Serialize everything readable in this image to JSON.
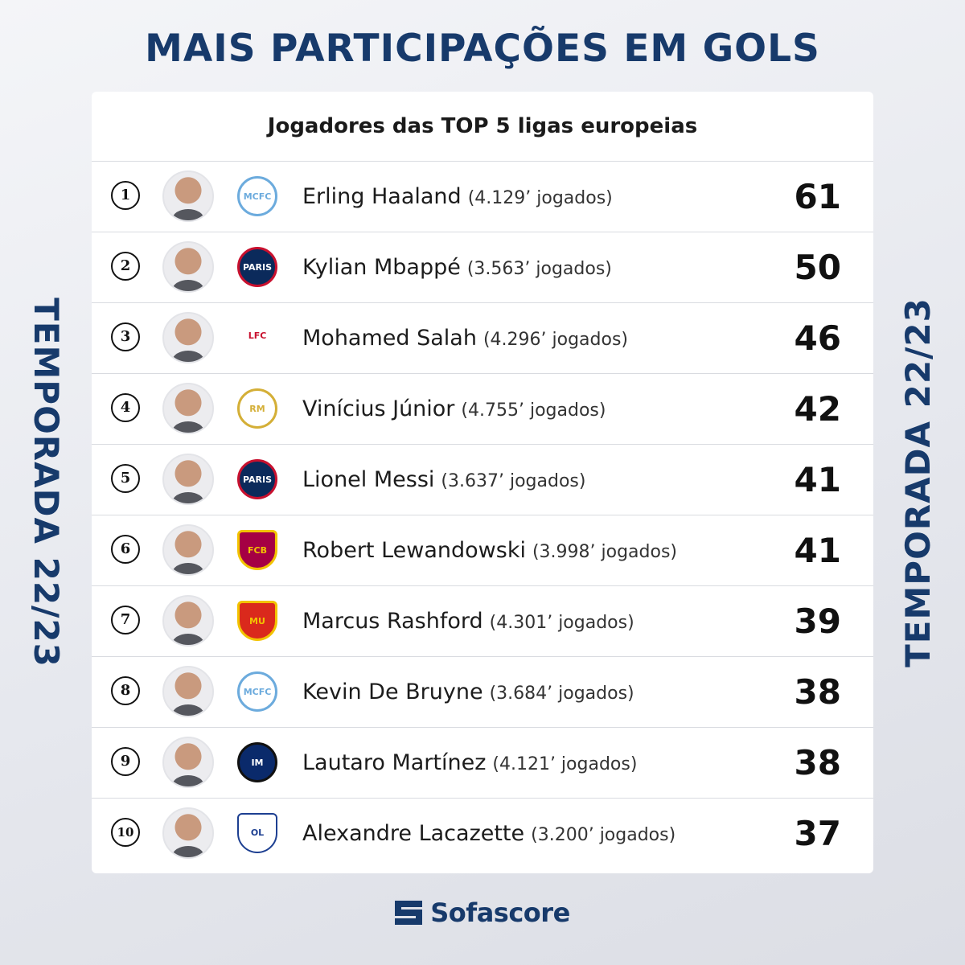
{
  "title": "MAIS PARTICIPAÇÕES EM GOLS",
  "side_label": "TEMPORADA 22/23",
  "card": {
    "header": "Jogadores das TOP 5 ligas europeias",
    "rows": [
      {
        "rank": "1",
        "name": "Erling Haaland",
        "minutes": "(4.129’ jogados)",
        "value": "61",
        "club_icon": "manchester-city-crest",
        "avatar_icon": "player-photo"
      },
      {
        "rank": "2",
        "name": "Kylian Mbappé",
        "minutes": "(3.563’ jogados)",
        "value": "50",
        "club_icon": "psg-crest",
        "avatar_icon": "player-photo"
      },
      {
        "rank": "3",
        "name": "Mohamed Salah",
        "minutes": "(4.296’ jogados)",
        "value": "46",
        "club_icon": "liverpool-crest",
        "avatar_icon": "player-photo"
      },
      {
        "rank": "4",
        "name": "Vinícius Júnior",
        "minutes": "(4.755’ jogados)",
        "value": "42",
        "club_icon": "real-madrid-crest",
        "avatar_icon": "player-photo"
      },
      {
        "rank": "5",
        "name": "Lionel Messi",
        "minutes": "(3.637’ jogados)",
        "value": "41",
        "club_icon": "psg-crest",
        "avatar_icon": "player-photo"
      },
      {
        "rank": "6",
        "name": "Robert Lewandowski",
        "minutes": "(3.998’ jogados)",
        "value": "41",
        "club_icon": "barcelona-crest",
        "avatar_icon": "player-photo"
      },
      {
        "rank": "7",
        "name": "Marcus Rashford",
        "minutes": "(4.301’ jogados)",
        "value": "39",
        "club_icon": "manchester-united-crest",
        "avatar_icon": "player-photo"
      },
      {
        "rank": "8",
        "name": "Kevin De Bruyne",
        "minutes": "(3.684’ jogados)",
        "value": "38",
        "club_icon": "manchester-city-crest",
        "avatar_icon": "player-photo"
      },
      {
        "rank": "9",
        "name": "Lautaro Martínez",
        "minutes": "(4.121’ jogados)",
        "value": "38",
        "club_icon": "inter-crest",
        "avatar_icon": "player-photo"
      },
      {
        "rank": "10",
        "name": "Alexandre Lacazette",
        "minutes": "(3.200’ jogados)",
        "value": "37",
        "club_icon": "lyon-crest",
        "avatar_icon": "player-photo"
      }
    ]
  },
  "brand": {
    "name": "Sofascore",
    "icon": "sofascore-logo-icon"
  },
  "colors": {
    "primary_navy": "#173a6b",
    "man_city": "#6cabdd",
    "psg": "#0b2a5b",
    "liverpool": "#c8102e",
    "real_madrid": "#d4af37",
    "barcelona": "#a50044",
    "man_united": "#da291c",
    "inter": "#0a2a6b",
    "lyon": "#1d3f91"
  }
}
